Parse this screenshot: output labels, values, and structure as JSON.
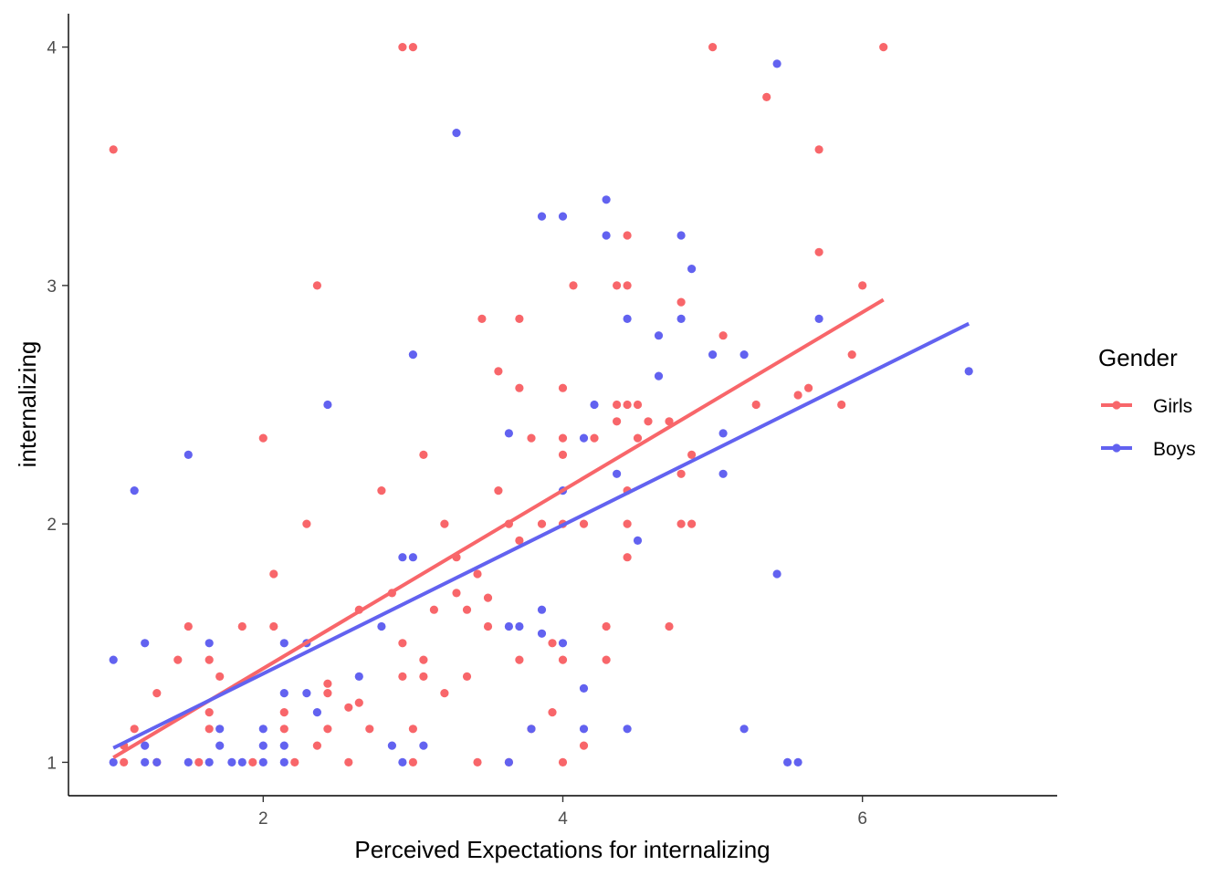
{
  "chart_data": {
    "type": "scatter",
    "title": "",
    "xlabel": "Perceived Expectations for internalizing",
    "ylabel": "internalizing",
    "xlim": [
      0.7,
      7.3
    ],
    "ylim": [
      0.86,
      4.14
    ],
    "x_ticks": [
      2,
      4,
      6
    ],
    "y_ticks": [
      1,
      2,
      3,
      4
    ],
    "grid": false,
    "legend": {
      "title": "Gender",
      "placement": "right"
    },
    "series": [
      {
        "name": "Girls",
        "color": "#f8666a",
        "fit_line": [
          [
            1.0,
            1.02
          ],
          [
            6.14,
            2.94
          ]
        ],
        "points": [
          [
            1.0,
            3.57
          ],
          [
            1.07,
            1.0
          ],
          [
            1.07,
            1.07
          ],
          [
            1.14,
            1.14
          ],
          [
            1.29,
            1.0
          ],
          [
            1.29,
            1.29
          ],
          [
            1.43,
            1.43
          ],
          [
            1.5,
            1.57
          ],
          [
            1.57,
            1.0
          ],
          [
            1.64,
            1.14
          ],
          [
            1.64,
            1.21
          ],
          [
            1.64,
            1.43
          ],
          [
            1.71,
            1.36
          ],
          [
            1.86,
            1.57
          ],
          [
            1.93,
            1.0
          ],
          [
            2.0,
            2.36
          ],
          [
            2.07,
            1.57
          ],
          [
            2.07,
            1.79
          ],
          [
            2.14,
            1.14
          ],
          [
            2.14,
            1.21
          ],
          [
            2.21,
            1.0
          ],
          [
            2.29,
            2.0
          ],
          [
            2.36,
            1.07
          ],
          [
            2.36,
            3.0
          ],
          [
            2.43,
            1.14
          ],
          [
            2.43,
            1.29
          ],
          [
            2.43,
            1.33
          ],
          [
            2.57,
            1.0
          ],
          [
            2.57,
            1.23
          ],
          [
            2.64,
            1.25
          ],
          [
            2.64,
            1.64
          ],
          [
            2.71,
            1.14
          ],
          [
            2.79,
            2.14
          ],
          [
            2.86,
            1.71
          ],
          [
            2.93,
            1.36
          ],
          [
            2.93,
            1.5
          ],
          [
            2.93,
            4.0
          ],
          [
            3.0,
            1.0
          ],
          [
            3.0,
            1.14
          ],
          [
            3.0,
            4.0
          ],
          [
            3.07,
            1.36
          ],
          [
            3.07,
            1.43
          ],
          [
            3.07,
            2.29
          ],
          [
            3.14,
            1.64
          ],
          [
            3.21,
            1.29
          ],
          [
            3.21,
            2.0
          ],
          [
            3.29,
            1.71
          ],
          [
            3.29,
            1.86
          ],
          [
            3.36,
            1.36
          ],
          [
            3.36,
            1.64
          ],
          [
            3.43,
            1.0
          ],
          [
            3.43,
            1.79
          ],
          [
            3.46,
            2.86
          ],
          [
            3.5,
            1.57
          ],
          [
            3.5,
            1.69
          ],
          [
            3.57,
            2.14
          ],
          [
            3.57,
            2.64
          ],
          [
            3.64,
            1.0
          ],
          [
            3.64,
            2.0
          ],
          [
            3.71,
            1.43
          ],
          [
            3.71,
            1.93
          ],
          [
            3.71,
            2.57
          ],
          [
            3.71,
            2.86
          ],
          [
            3.79,
            1.14
          ],
          [
            3.79,
            2.36
          ],
          [
            3.86,
            2.0
          ],
          [
            3.93,
            1.21
          ],
          [
            3.93,
            1.5
          ],
          [
            4.0,
            1.0
          ],
          [
            4.0,
            1.43
          ],
          [
            4.0,
            2.0
          ],
          [
            4.0,
            2.29
          ],
          [
            4.0,
            2.36
          ],
          [
            4.0,
            2.57
          ],
          [
            4.07,
            3.0
          ],
          [
            4.14,
            1.07
          ],
          [
            4.14,
            2.0
          ],
          [
            4.21,
            2.36
          ],
          [
            4.29,
            1.43
          ],
          [
            4.29,
            1.57
          ],
          [
            4.36,
            2.43
          ],
          [
            4.36,
            2.5
          ],
          [
            4.36,
            3.0
          ],
          [
            4.43,
            1.86
          ],
          [
            4.43,
            2.0
          ],
          [
            4.43,
            2.14
          ],
          [
            4.43,
            2.5
          ],
          [
            4.43,
            3.0
          ],
          [
            4.43,
            3.21
          ],
          [
            4.5,
            2.36
          ],
          [
            4.5,
            2.5
          ],
          [
            4.57,
            2.43
          ],
          [
            4.71,
            1.57
          ],
          [
            4.71,
            2.43
          ],
          [
            4.79,
            2.0
          ],
          [
            4.79,
            2.21
          ],
          [
            4.79,
            2.93
          ],
          [
            4.86,
            2.0
          ],
          [
            4.86,
            2.29
          ],
          [
            5.0,
            4.0
          ],
          [
            5.07,
            2.79
          ],
          [
            5.29,
            2.5
          ],
          [
            5.36,
            3.79
          ],
          [
            5.57,
            2.54
          ],
          [
            5.64,
            2.57
          ],
          [
            5.71,
            3.14
          ],
          [
            5.71,
            3.57
          ],
          [
            5.86,
            2.5
          ],
          [
            5.93,
            2.71
          ],
          [
            6.0,
            3.0
          ],
          [
            6.14,
            4.0
          ]
        ]
      },
      {
        "name": "Boys",
        "color": "#6262f0",
        "fit_line": [
          [
            1.0,
            1.06
          ],
          [
            6.71,
            2.84
          ]
        ],
        "points": [
          [
            1.0,
            1.0
          ],
          [
            1.0,
            1.43
          ],
          [
            1.14,
            2.14
          ],
          [
            1.21,
            1.0
          ],
          [
            1.21,
            1.07
          ],
          [
            1.21,
            1.5
          ],
          [
            1.29,
            1.0
          ],
          [
            1.5,
            1.0
          ],
          [
            1.5,
            2.29
          ],
          [
            1.64,
            1.0
          ],
          [
            1.64,
            1.5
          ],
          [
            1.71,
            1.07
          ],
          [
            1.71,
            1.14
          ],
          [
            1.79,
            1.0
          ],
          [
            1.86,
            1.0
          ],
          [
            2.0,
            1.0
          ],
          [
            2.0,
            1.07
          ],
          [
            2.0,
            1.14
          ],
          [
            2.14,
            1.0
          ],
          [
            2.14,
            1.07
          ],
          [
            2.14,
            1.29
          ],
          [
            2.14,
            1.5
          ],
          [
            2.29,
            1.29
          ],
          [
            2.29,
            1.5
          ],
          [
            2.36,
            1.21
          ],
          [
            2.43,
            2.5
          ],
          [
            2.64,
            1.36
          ],
          [
            2.79,
            1.57
          ],
          [
            2.86,
            1.07
          ],
          [
            2.93,
            1.0
          ],
          [
            2.93,
            1.86
          ],
          [
            3.0,
            1.86
          ],
          [
            3.0,
            2.71
          ],
          [
            3.07,
            1.07
          ],
          [
            3.29,
            3.64
          ],
          [
            3.64,
            1.0
          ],
          [
            3.64,
            1.57
          ],
          [
            3.64,
            2.38
          ],
          [
            3.71,
            1.57
          ],
          [
            3.79,
            1.14
          ],
          [
            3.86,
            1.54
          ],
          [
            3.86,
            1.64
          ],
          [
            3.86,
            3.29
          ],
          [
            4.0,
            1.5
          ],
          [
            4.0,
            2.14
          ],
          [
            4.0,
            3.29
          ],
          [
            4.14,
            1.14
          ],
          [
            4.14,
            1.31
          ],
          [
            4.14,
            2.36
          ],
          [
            4.21,
            2.5
          ],
          [
            4.29,
            3.21
          ],
          [
            4.29,
            3.36
          ],
          [
            4.36,
            2.21
          ],
          [
            4.43,
            1.14
          ],
          [
            4.43,
            2.86
          ],
          [
            4.5,
            1.93
          ],
          [
            4.64,
            2.62
          ],
          [
            4.64,
            2.79
          ],
          [
            4.79,
            2.86
          ],
          [
            4.79,
            3.21
          ],
          [
            4.86,
            3.07
          ],
          [
            5.0,
            2.71
          ],
          [
            5.07,
            2.21
          ],
          [
            5.07,
            2.38
          ],
          [
            5.21,
            1.14
          ],
          [
            5.21,
            2.71
          ],
          [
            5.43,
            1.79
          ],
          [
            5.43,
            3.93
          ],
          [
            5.5,
            1.0
          ],
          [
            5.57,
            1.0
          ],
          [
            5.71,
            2.86
          ],
          [
            6.71,
            2.64
          ]
        ]
      }
    ]
  }
}
